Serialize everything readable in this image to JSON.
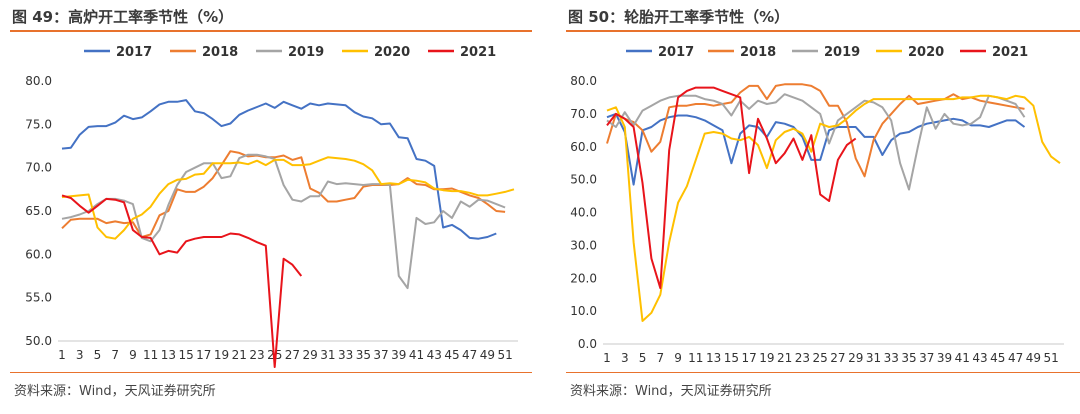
{
  "colors": {
    "2017": "#4472c4",
    "2018": "#ed7d31",
    "2019": "#a5a5a5",
    "2020": "#ffc000",
    "2021": "#e8141b",
    "accent_rule": "#e8722d"
  },
  "chart_data": [
    {
      "type": "line",
      "title": "图 49：高炉开工率季节性（%）",
      "source": "资料来源：Wind，天风证券研究所",
      "xlabel": "",
      "ylabel": "",
      "x_range": [
        1,
        52
      ],
      "xticks": [
        1,
        3,
        5,
        7,
        9,
        11,
        13,
        15,
        17,
        19,
        21,
        23,
        25,
        27,
        29,
        31,
        33,
        35,
        37,
        39,
        41,
        43,
        45,
        47,
        49,
        51
      ],
      "ylim": [
        50,
        80
      ],
      "yticks": [
        "50.0",
        "55.0",
        "60.0",
        "65.0",
        "70.0",
        "75.0",
        "80.0"
      ],
      "ytick_values": [
        50,
        55,
        60,
        65,
        70,
        75,
        80
      ],
      "legend": [
        "2017",
        "2018",
        "2019",
        "2020",
        "2021"
      ],
      "legend_position": "top",
      "series": [
        {
          "name": "2017",
          "x": [
            1,
            2,
            3,
            4,
            5,
            6,
            7,
            8,
            9,
            10,
            11,
            12,
            13,
            14,
            15,
            16,
            17,
            18,
            19,
            20,
            21,
            22,
            23,
            24,
            25,
            26,
            27,
            28,
            29,
            30,
            31,
            32,
            33,
            34,
            35,
            36,
            37,
            38,
            39,
            40,
            41,
            42,
            43,
            44,
            45,
            46,
            47,
            48,
            49,
            50
          ],
          "values": [
            72.2,
            72.3,
            73.8,
            74.7,
            74.8,
            74.8,
            75.2,
            76.0,
            75.6,
            75.8,
            76.5,
            77.3,
            77.6,
            77.6,
            77.8,
            76.5,
            76.3,
            75.6,
            74.8,
            75.1,
            76.1,
            76.6,
            77.0,
            77.4,
            76.9,
            77.6,
            77.2,
            76.8,
            77.4,
            77.2,
            77.4,
            77.3,
            77.2,
            76.4,
            75.9,
            75.7,
            75.0,
            75.1,
            73.5,
            73.4,
            71.0,
            70.8,
            70.2,
            63.1,
            63.4,
            62.8,
            61.9,
            61.8,
            62.0,
            62.4
          ]
        },
        {
          "name": "2018",
          "x": [
            1,
            2,
            3,
            4,
            5,
            6,
            7,
            8,
            9,
            10,
            11,
            12,
            13,
            14,
            15,
            16,
            17,
            18,
            19,
            20,
            21,
            22,
            23,
            24,
            25,
            26,
            27,
            28,
            29,
            30,
            31,
            32,
            33,
            34,
            35,
            36,
            37,
            38,
            39,
            40,
            41,
            42,
            43,
            44,
            45,
            46,
            47,
            48,
            49,
            50,
            51
          ],
          "values": [
            63.0,
            64.0,
            64.1,
            64.1,
            64.1,
            63.6,
            63.8,
            63.6,
            63.7,
            62.0,
            62.3,
            64.5,
            65.0,
            67.5,
            67.2,
            67.2,
            67.8,
            68.8,
            70.3,
            71.9,
            71.7,
            71.3,
            71.4,
            71.2,
            71.2,
            71.4,
            70.9,
            71.2,
            67.6,
            67.1,
            66.1,
            66.1,
            66.3,
            66.5,
            67.8,
            68.0,
            68.0,
            68.0,
            68.1,
            68.8,
            68.1,
            68.0,
            67.5,
            67.5,
            67.6,
            67.2,
            66.8,
            66.5,
            65.8,
            65.0,
            64.9
          ]
        },
        {
          "name": "2019",
          "x": [
            1,
            2,
            3,
            4,
            5,
            6,
            7,
            8,
            9,
            10,
            11,
            12,
            13,
            14,
            15,
            16,
            17,
            18,
            19,
            20,
            21,
            22,
            23,
            24,
            25,
            26,
            27,
            28,
            29,
            30,
            31,
            32,
            33,
            34,
            35,
            36,
            37,
            38,
            39,
            40,
            41,
            42,
            43,
            44,
            45,
            46,
            47,
            48,
            49,
            50,
            51
          ],
          "values": [
            64.1,
            64.3,
            64.6,
            65.0,
            65.8,
            66.4,
            66.4,
            66.2,
            65.8,
            61.9,
            61.5,
            62.8,
            65.7,
            68.0,
            69.5,
            70.0,
            70.5,
            70.5,
            68.8,
            69.0,
            71.1,
            71.5,
            71.5,
            71.3,
            71.0,
            68.0,
            66.3,
            66.1,
            66.7,
            66.7,
            68.4,
            68.1,
            68.2,
            68.1,
            68.0,
            68.1,
            68.1,
            68.0,
            57.5,
            56.1,
            64.2,
            63.5,
            63.7,
            65.0,
            64.2,
            66.1,
            65.5,
            66.3,
            66.2,
            65.8,
            65.4
          ]
        },
        {
          "name": "2020",
          "x": [
            1,
            2,
            3,
            4,
            5,
            6,
            7,
            8,
            9,
            10,
            11,
            12,
            13,
            14,
            15,
            16,
            17,
            18,
            19,
            20,
            21,
            22,
            23,
            24,
            25,
            26,
            27,
            28,
            29,
            30,
            31,
            32,
            33,
            34,
            35,
            36,
            37,
            38,
            39,
            40,
            41,
            42,
            43,
            44,
            45,
            46,
            47,
            48,
            49,
            50,
            51,
            52
          ],
          "values": [
            66.6,
            66.7,
            66.8,
            66.9,
            63.1,
            62.0,
            61.8,
            62.8,
            64.1,
            64.6,
            65.5,
            67.0,
            68.1,
            68.6,
            68.7,
            69.2,
            69.3,
            70.5,
            70.5,
            70.5,
            70.6,
            70.4,
            70.8,
            70.3,
            70.9,
            70.9,
            70.3,
            70.3,
            70.4,
            70.8,
            71.2,
            71.1,
            71.0,
            70.8,
            70.4,
            69.7,
            68.1,
            68.2,
            68.1,
            68.6,
            68.5,
            68.3,
            67.6,
            67.4,
            67.3,
            67.3,
            67.1,
            66.8,
            66.8,
            67.0,
            67.2,
            67.5
          ]
        },
        {
          "name": "2021",
          "x": [
            1,
            2,
            3,
            4,
            5,
            6,
            7,
            8,
            9,
            10,
            11,
            12,
            13,
            14,
            15,
            16,
            17,
            18,
            19,
            20,
            21,
            22,
            23,
            24,
            25,
            26,
            27,
            28
          ],
          "values": [
            66.8,
            66.5,
            65.6,
            64.8,
            65.6,
            66.4,
            66.3,
            66.0,
            62.8,
            62.0,
            61.9,
            60.0,
            60.4,
            60.2,
            61.5,
            61.8,
            62.0,
            62.0,
            62.0,
            62.4,
            62.3,
            61.9,
            61.4,
            61.0,
            47.0,
            59.5,
            58.8,
            57.5
          ]
        }
      ]
    },
    {
      "type": "line",
      "title": "图 50：轮胎开工率季节性（%）",
      "source": "资料来源：Wind，天风证券研究所",
      "xlabel": "",
      "ylabel": "",
      "x_range": [
        1,
        52
      ],
      "xticks": [
        1,
        3,
        5,
        7,
        9,
        11,
        13,
        15,
        17,
        19,
        21,
        23,
        25,
        27,
        29,
        31,
        33,
        35,
        37,
        39,
        41,
        43,
        45,
        47,
        49,
        51
      ],
      "ylim": [
        0,
        80
      ],
      "yticks": [
        "0.0",
        "10.0",
        "20.0",
        "30.0",
        "40.0",
        "50.0",
        "60.0",
        "70.0",
        "80.0"
      ],
      "ytick_values": [
        0,
        10,
        20,
        30,
        40,
        50,
        60,
        70,
        80
      ],
      "legend": [
        "2017",
        "2018",
        "2019",
        "2020",
        "2021"
      ],
      "legend_position": "top",
      "series": [
        {
          "name": "2017",
          "x": [
            1,
            2,
            3,
            4,
            5,
            6,
            7,
            8,
            9,
            10,
            11,
            12,
            13,
            14,
            15,
            16,
            17,
            18,
            19,
            20,
            21,
            22,
            23,
            24,
            25,
            26,
            27,
            28,
            29,
            30,
            31,
            32,
            33,
            34,
            35,
            36,
            37,
            38,
            39,
            40,
            41,
            42,
            43,
            44,
            45,
            46,
            47,
            48
          ],
          "values": [
            69.0,
            70.0,
            64.5,
            48.5,
            65.0,
            66.0,
            68.0,
            69.0,
            69.5,
            69.5,
            69.0,
            68.0,
            66.5,
            65.0,
            55.0,
            64.0,
            66.5,
            66.0,
            63.0,
            67.5,
            67.0,
            66.0,
            63.0,
            56.0,
            56.0,
            65.0,
            66.0,
            66.0,
            66.0,
            63.0,
            63.0,
            57.5,
            62.0,
            64.0,
            64.5,
            66.0,
            67.0,
            67.5,
            68.0,
            68.5,
            68.0,
            66.5,
            66.5,
            66.0,
            67.0,
            68.0,
            68.0,
            66.0
          ]
        },
        {
          "name": "2018",
          "x": [
            1,
            2,
            3,
            4,
            5,
            6,
            7,
            8,
            9,
            10,
            11,
            12,
            13,
            14,
            15,
            16,
            17,
            18,
            19,
            20,
            21,
            22,
            23,
            24,
            25,
            26,
            27,
            28,
            29,
            30,
            31,
            32,
            33,
            34,
            35,
            36,
            37,
            38,
            39,
            40,
            41,
            42,
            43,
            44,
            45,
            46,
            47,
            48
          ],
          "values": [
            61.0,
            70.0,
            68.5,
            67.5,
            65.0,
            58.5,
            61.5,
            72.0,
            72.5,
            72.5,
            73.0,
            73.0,
            72.5,
            73.0,
            73.5,
            76.5,
            78.5,
            78.5,
            74.5,
            78.5,
            79.0,
            79.0,
            79.0,
            78.5,
            77.0,
            72.5,
            72.5,
            67.5,
            56.5,
            51.0,
            62.0,
            67.0,
            70.0,
            73.0,
            75.5,
            73.0,
            73.5,
            74.0,
            74.5,
            76.0,
            74.5,
            75.0,
            74.0,
            73.5,
            73.0,
            72.5,
            72.0,
            71.5
          ]
        },
        {
          "name": "2019",
          "x": [
            1,
            2,
            3,
            4,
            5,
            6,
            7,
            8,
            9,
            10,
            11,
            12,
            13,
            14,
            15,
            16,
            17,
            18,
            19,
            20,
            21,
            22,
            23,
            24,
            25,
            26,
            27,
            28,
            29,
            30,
            31,
            32,
            33,
            34,
            35,
            36,
            37,
            38,
            39,
            40,
            41,
            42,
            43,
            44,
            45,
            46,
            47,
            48
          ],
          "values": [
            68.0,
            66.0,
            70.5,
            66.5,
            71.0,
            72.5,
            74.0,
            75.0,
            75.5,
            75.5,
            75.5,
            74.5,
            74.0,
            73.0,
            69.5,
            74.0,
            71.5,
            74.0,
            73.0,
            73.5,
            76.0,
            75.0,
            74.0,
            72.0,
            70.0,
            61.0,
            68.0,
            70.0,
            72.0,
            74.0,
            73.5,
            72.0,
            68.0,
            55.0,
            47.0,
            60.0,
            72.0,
            65.5,
            70.0,
            67.0,
            66.5,
            67.0,
            69.0,
            75.5,
            75.0,
            74.0,
            73.0,
            69.0
          ]
        },
        {
          "name": "2020",
          "x": [
            1,
            2,
            3,
            4,
            5,
            6,
            7,
            8,
            9,
            10,
            11,
            12,
            13,
            14,
            15,
            16,
            17,
            18,
            19,
            20,
            21,
            22,
            23,
            24,
            25,
            26,
            27,
            28,
            29,
            30,
            31,
            32,
            33,
            34,
            35,
            36,
            37,
            38,
            39,
            40,
            41,
            42,
            43,
            44,
            45,
            46,
            47,
            48,
            49,
            50,
            51,
            52
          ],
          "values": [
            71.0,
            72.0,
            66.0,
            31.0,
            7.0,
            9.5,
            15.0,
            31.0,
            43.0,
            48.0,
            56.0,
            64.0,
            64.5,
            64.0,
            62.5,
            62.0,
            63.0,
            60.5,
            53.5,
            62.0,
            64.5,
            65.5,
            64.0,
            58.5,
            67.0,
            66.0,
            66.5,
            68.5,
            71.0,
            73.0,
            74.5,
            74.5,
            74.5,
            74.5,
            74.5,
            74.5,
            74.5,
            74.5,
            74.5,
            74.5,
            75.0,
            75.0,
            75.5,
            75.5,
            75.0,
            74.5,
            75.5,
            75.0,
            72.5,
            61.5,
            57.0,
            55.0
          ]
        },
        {
          "name": "2021",
          "x": [
            1,
            2,
            3,
            4,
            5,
            6,
            7,
            8,
            9,
            10,
            11,
            12,
            13,
            14,
            15,
            16,
            17,
            18,
            19,
            20,
            21,
            22,
            23,
            24,
            25,
            26,
            27,
            28,
            29
          ],
          "values": [
            66.5,
            70.0,
            68.5,
            66.0,
            49.0,
            26.0,
            17.0,
            59.0,
            75.0,
            77.0,
            78.0,
            78.0,
            78.0,
            77.0,
            76.0,
            75.0,
            52.0,
            68.5,
            62.5,
            55.0,
            58.0,
            62.5,
            56.0,
            63.5,
            45.5,
            43.5,
            56.0,
            60.5,
            62.5
          ]
        }
      ]
    }
  ]
}
